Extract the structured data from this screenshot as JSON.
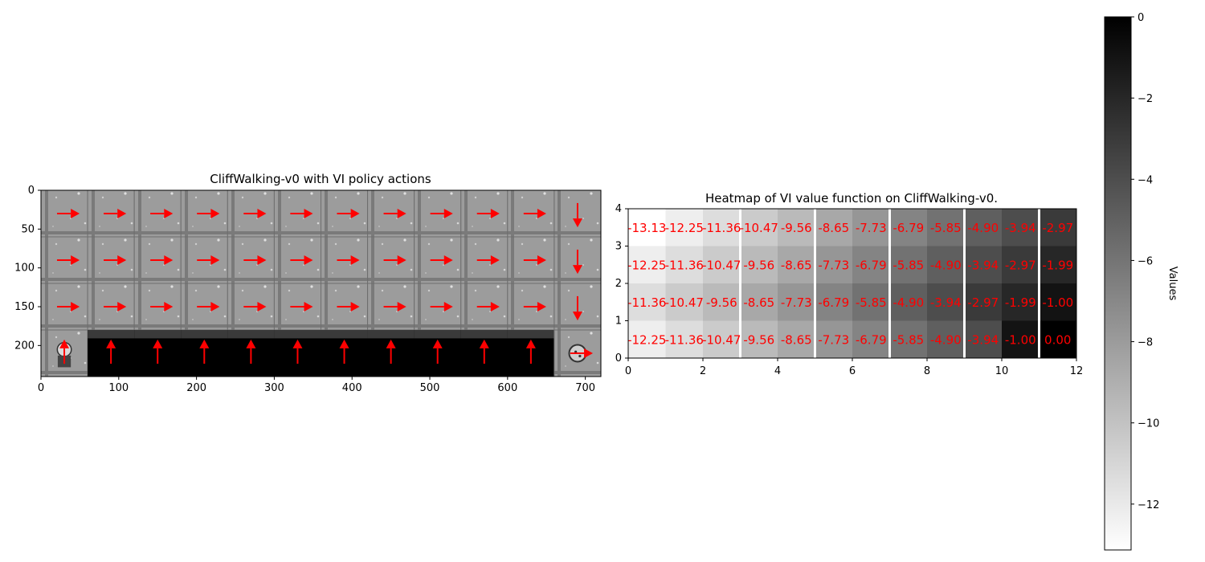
{
  "chart_data": [
    {
      "type": "image",
      "title": "CliffWalking-v0 with VI policy actions",
      "xlim": [
        0,
        720
      ],
      "ylim": [
        240,
        0
      ],
      "xticks": [
        0,
        100,
        200,
        300,
        400,
        500,
        600,
        700
      ],
      "yticks": [
        0,
        50,
        100,
        150,
        200
      ],
      "grid_rows": 4,
      "grid_cols": 12,
      "policy": [
        [
          "right",
          "right",
          "right",
          "right",
          "right",
          "right",
          "right",
          "right",
          "right",
          "right",
          "right",
          "down"
        ],
        [
          "right",
          "right",
          "right",
          "right",
          "right",
          "right",
          "right",
          "right",
          "right",
          "right",
          "right",
          "down"
        ],
        [
          "right",
          "right",
          "right",
          "right",
          "right",
          "right",
          "right",
          "right",
          "right",
          "right",
          "right",
          "down"
        ],
        [
          "up",
          "up",
          "up",
          "up",
          "up",
          "up",
          "up",
          "up",
          "up",
          "up",
          "up",
          "right"
        ]
      ],
      "cells": [
        [
          "floor",
          "floor",
          "floor",
          "floor",
          "floor",
          "floor",
          "floor",
          "floor",
          "floor",
          "floor",
          "floor",
          "floor"
        ],
        [
          "floor",
          "floor",
          "floor",
          "floor",
          "floor",
          "floor",
          "floor",
          "floor",
          "floor",
          "floor",
          "floor",
          "floor"
        ],
        [
          "floor",
          "floor",
          "floor",
          "floor",
          "floor",
          "floor",
          "floor",
          "floor",
          "floor",
          "floor",
          "floor",
          "floor"
        ],
        [
          "agent",
          "cliff",
          "cliff",
          "cliff",
          "cliff",
          "cliff",
          "cliff",
          "cliff",
          "cliff",
          "cliff",
          "cliff",
          "goal"
        ]
      ],
      "arrow_color": "#ff0000"
    },
    {
      "type": "heatmap",
      "title": "Heatmap of VI value function on CliffWalking-v0.",
      "xlim": [
        0,
        12
      ],
      "ylim": [
        0,
        4
      ],
      "xticks": [
        0,
        2,
        4,
        6,
        8,
        10,
        12
      ],
      "yticks": [
        0,
        1,
        2,
        3,
        4
      ],
      "rows": [
        [
          "-13.13",
          "-12.25",
          "-11.36",
          "-10.47",
          "-9.56",
          "-8.65",
          "-7.73",
          "-6.79",
          "-5.85",
          "-4.90",
          "-3.94",
          "-2.97"
        ],
        [
          "-12.25",
          "-11.36",
          "-10.47",
          "-9.56",
          "-8.65",
          "-7.73",
          "-6.79",
          "-5.85",
          "-4.90",
          "-3.94",
          "-2.97",
          "-1.99"
        ],
        [
          "-11.36",
          "-10.47",
          "-9.56",
          "-8.65",
          "-7.73",
          "-6.79",
          "-5.85",
          "-4.90",
          "-3.94",
          "-2.97",
          "-1.99",
          "-1.00"
        ],
        [
          "-12.25",
          "-11.36",
          "-10.47",
          "-9.56",
          "-8.65",
          "-7.73",
          "-6.79",
          "-5.85",
          "-4.90",
          "-3.94",
          "-1.00",
          "0.00"
        ]
      ],
      "label_color": "#ff0000",
      "colormap": "Greys",
      "colorbar": {
        "label": "Values",
        "vmin": -13.13,
        "vmax": 0,
        "ticks": [
          0,
          -2,
          -4,
          -6,
          -8,
          -10,
          -12
        ],
        "tick_labels": [
          "0",
          "−2",
          "−4",
          "−6",
          "−8",
          "−10",
          "−12"
        ]
      }
    }
  ]
}
